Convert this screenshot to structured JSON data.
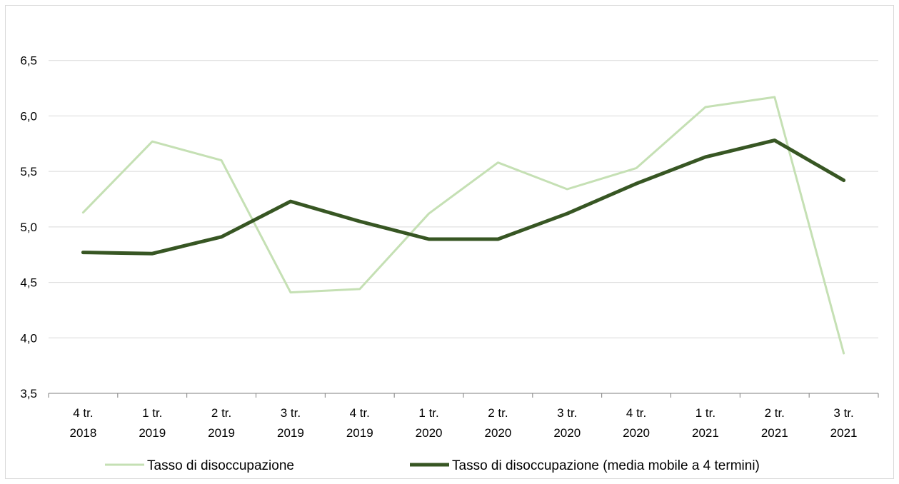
{
  "chart_data": {
    "type": "line",
    "categories": [
      [
        "4 tr.",
        "2018"
      ],
      [
        "1 tr.",
        "2019"
      ],
      [
        "2 tr.",
        "2019"
      ],
      [
        "3 tr.",
        "2019"
      ],
      [
        "4 tr.",
        "2019"
      ],
      [
        "1 tr.",
        "2020"
      ],
      [
        "2 tr.",
        "2020"
      ],
      [
        "3 tr.",
        "2020"
      ],
      [
        "4 tr.",
        "2020"
      ],
      [
        "1 tr.",
        "2021"
      ],
      [
        "2 tr.",
        "2021"
      ],
      [
        "3 tr.",
        "2021"
      ]
    ],
    "ylim": [
      3.5,
      7.0
    ],
    "yticks": [
      3.5,
      4.0,
      4.5,
      5.0,
      5.5,
      6.0,
      6.5
    ],
    "ytick_labels": [
      "3,5",
      "4,0",
      "4,5",
      "5,0",
      "5,5",
      "6,0",
      "6,5"
    ],
    "grid": "horizontal",
    "legend_position": "bottom",
    "series": [
      {
        "name": "Tasso di disoccupazione",
        "color": "#c5e0b4",
        "values": [
          5.13,
          5.77,
          5.6,
          4.41,
          4.44,
          5.12,
          5.58,
          5.34,
          5.53,
          6.08,
          6.17,
          3.86
        ]
      },
      {
        "name": "Tasso di disoccupazione (media mobile a 4 termini)",
        "color": "#375623",
        "values": [
          4.77,
          4.76,
          4.91,
          5.23,
          5.05,
          4.89,
          4.89,
          5.12,
          5.39,
          5.63,
          5.78,
          5.42
        ]
      }
    ]
  }
}
